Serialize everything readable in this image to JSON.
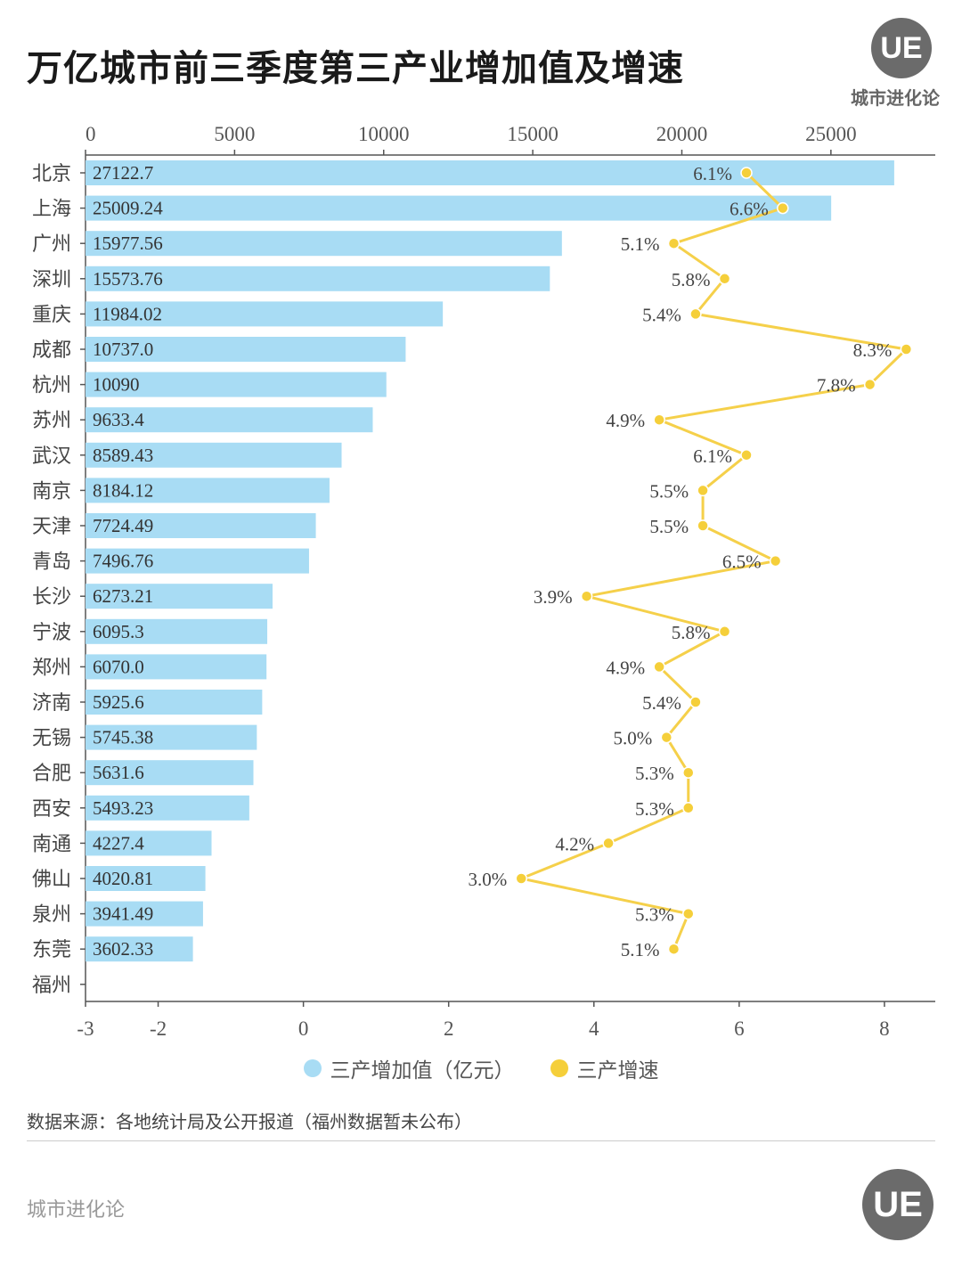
{
  "title": "万亿城市前三季度第三产业增加值及增速",
  "brand": {
    "logo_text": "UE",
    "name": "城市进化论"
  },
  "legend": {
    "bar_label": "三产增加值（亿元）",
    "line_label": "三产增速"
  },
  "source": "数据来源：各地统计局及公开报道（福州数据暂未公布）",
  "footer": "城市进化论",
  "colors": {
    "bar": "#a8dcf4",
    "line": "#f5d04a",
    "dot": "#f5cf3a"
  },
  "chart_data": {
    "type": "bar",
    "orientation": "horizontal",
    "categories": [
      "北京",
      "上海",
      "广州",
      "深圳",
      "重庆",
      "成都",
      "杭州",
      "苏州",
      "武汉",
      "南京",
      "天津",
      "青岛",
      "长沙",
      "宁波",
      "郑州",
      "济南",
      "无锡",
      "合肥",
      "西安",
      "南通",
      "佛山",
      "泉州",
      "东莞",
      "福州"
    ],
    "series": [
      {
        "name": "三产增加值（亿元）",
        "type": "bar",
        "axis": "top",
        "values": [
          27122.7,
          25009.24,
          15977.56,
          15573.76,
          11984.02,
          10737.0,
          10090,
          9633.4,
          8589.43,
          8184.12,
          7724.49,
          7496.76,
          6273.21,
          6095.3,
          6070.0,
          5925.6,
          5745.38,
          5631.6,
          5493.23,
          4227.4,
          4020.81,
          3941.49,
          3602.33,
          null
        ],
        "labels": [
          "27122.7",
          "25009.24",
          "15977.56",
          "15573.76",
          "11984.02",
          "10737.0",
          "10090",
          "9633.4",
          "8589.43",
          "8184.12",
          "7724.49",
          "7496.76",
          "6273.21",
          "6095.3",
          "6070.0",
          "5925.6",
          "5745.38",
          "5631.6",
          "5493.23",
          "4227.4",
          "4020.81",
          "3941.49",
          "3602.33",
          ""
        ]
      },
      {
        "name": "三产增速",
        "type": "line",
        "axis": "bottom",
        "values": [
          6.1,
          6.6,
          5.1,
          5.8,
          5.4,
          8.3,
          7.8,
          4.9,
          6.1,
          5.5,
          5.5,
          6.5,
          3.9,
          5.8,
          4.9,
          5.4,
          5.0,
          5.3,
          5.3,
          4.2,
          3.0,
          5.3,
          5.1,
          null
        ],
        "labels": [
          "6.1%",
          "6.6%",
          "5.1%",
          "5.8%",
          "5.4%",
          "8.3%",
          "7.8%",
          "4.9%",
          "6.1%",
          "5.5%",
          "5.5%",
          "6.5%",
          "3.9%",
          "5.8%",
          "4.9%",
          "5.4%",
          "5.0%",
          "5.3%",
          "5.3%",
          "4.2%",
          "3.0%",
          "5.3%",
          "5.1%",
          ""
        ]
      }
    ],
    "top_axis": {
      "ticks": [
        0,
        5000,
        10000,
        15000,
        20000,
        25000
      ],
      "range": [
        0,
        28500
      ]
    },
    "bottom_axis": {
      "ticks": [
        -3,
        -2,
        0,
        2,
        4,
        6,
        8
      ],
      "range": [
        -3,
        8.7
      ]
    },
    "legend_position": "bottom"
  }
}
